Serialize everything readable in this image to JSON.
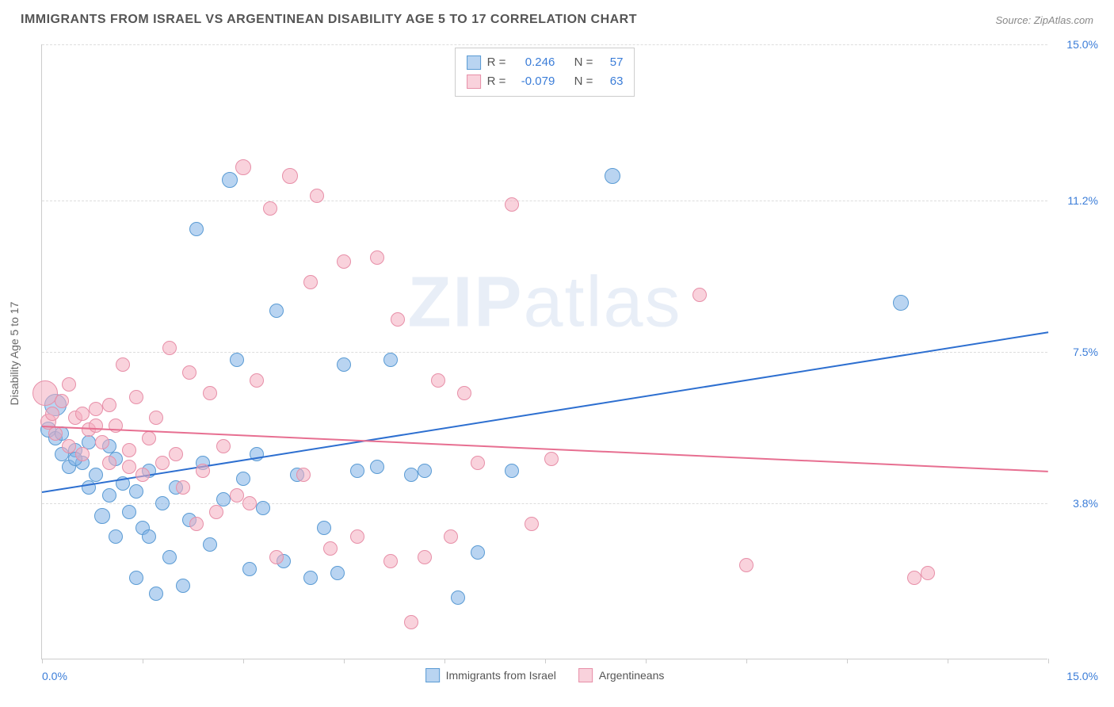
{
  "title": "IMMIGRANTS FROM ISRAEL VS ARGENTINEAN DISABILITY AGE 5 TO 17 CORRELATION CHART",
  "source": "Source: ZipAtlas.com",
  "ylabel": "Disability Age 5 to 17",
  "watermark_bold": "ZIP",
  "watermark_light": "atlas",
  "chart": {
    "type": "scatter",
    "xlim": [
      0,
      15
    ],
    "ylim": [
      0,
      15
    ],
    "background_color": "#ffffff",
    "grid_color": "#dddddd",
    "axis_color": "#cccccc",
    "tick_color": "#3b7dd8",
    "y_gridlines": [
      3.8,
      7.5,
      11.2,
      15.0
    ],
    "y_tick_labels": [
      "3.8%",
      "7.5%",
      "11.2%",
      "15.0%"
    ],
    "x_ticks_minor": [
      0,
      1.5,
      3.0,
      4.5,
      6.0,
      7.5,
      9.0,
      10.5,
      12.0,
      13.5,
      15.0
    ],
    "x_left_label": "0.0%",
    "x_right_label": "15.0%"
  },
  "series": [
    {
      "name": "Immigrants from Israel",
      "fill": "rgba(127,176,230,0.55)",
      "stroke": "#5a9bd4",
      "line_color": "#2d6fd0",
      "R": "0.246",
      "N": "57",
      "trend": {
        "x1": 0,
        "y1": 4.1,
        "x2": 15,
        "y2": 8.0
      },
      "points": [
        {
          "x": 0.1,
          "y": 5.6,
          "r": 10
        },
        {
          "x": 0.2,
          "y": 6.2,
          "r": 14
        },
        {
          "x": 0.2,
          "y": 5.4,
          "r": 9
        },
        {
          "x": 0.3,
          "y": 5.0,
          "r": 9
        },
        {
          "x": 0.4,
          "y": 4.7,
          "r": 9
        },
        {
          "x": 0.5,
          "y": 5.1,
          "r": 9
        },
        {
          "x": 0.6,
          "y": 4.8,
          "r": 9
        },
        {
          "x": 0.7,
          "y": 5.3,
          "r": 9
        },
        {
          "x": 0.8,
          "y": 4.5,
          "r": 9
        },
        {
          "x": 0.9,
          "y": 3.5,
          "r": 10
        },
        {
          "x": 1.0,
          "y": 4.0,
          "r": 9
        },
        {
          "x": 1.1,
          "y": 3.0,
          "r": 9
        },
        {
          "x": 1.2,
          "y": 4.3,
          "r": 9
        },
        {
          "x": 1.3,
          "y": 3.6,
          "r": 9
        },
        {
          "x": 1.4,
          "y": 2.0,
          "r": 9
        },
        {
          "x": 1.5,
          "y": 3.2,
          "r": 9
        },
        {
          "x": 1.6,
          "y": 4.6,
          "r": 9
        },
        {
          "x": 1.7,
          "y": 1.6,
          "r": 9
        },
        {
          "x": 1.8,
          "y": 3.8,
          "r": 9
        },
        {
          "x": 1.9,
          "y": 2.5,
          "r": 9
        },
        {
          "x": 2.0,
          "y": 4.2,
          "r": 9
        },
        {
          "x": 2.1,
          "y": 1.8,
          "r": 9
        },
        {
          "x": 2.2,
          "y": 3.4,
          "r": 9
        },
        {
          "x": 2.4,
          "y": 4.8,
          "r": 9
        },
        {
          "x": 2.5,
          "y": 2.8,
          "r": 9
        },
        {
          "x": 2.7,
          "y": 3.9,
          "r": 9
        },
        {
          "x": 2.8,
          "y": 11.7,
          "r": 10
        },
        {
          "x": 2.9,
          "y": 7.3,
          "r": 9
        },
        {
          "x": 3.0,
          "y": 4.4,
          "r": 9
        },
        {
          "x": 3.1,
          "y": 2.2,
          "r": 9
        },
        {
          "x": 3.3,
          "y": 3.7,
          "r": 9
        },
        {
          "x": 3.5,
          "y": 8.5,
          "r": 9
        },
        {
          "x": 3.6,
          "y": 2.4,
          "r": 9
        },
        {
          "x": 3.8,
          "y": 4.5,
          "r": 9
        },
        {
          "x": 4.0,
          "y": 2.0,
          "r": 9
        },
        {
          "x": 4.2,
          "y": 3.2,
          "r": 9
        },
        {
          "x": 4.4,
          "y": 2.1,
          "r": 9
        },
        {
          "x": 4.5,
          "y": 7.2,
          "r": 9
        },
        {
          "x": 4.7,
          "y": 4.6,
          "r": 9
        },
        {
          "x": 5.0,
          "y": 4.7,
          "r": 9
        },
        {
          "x": 5.2,
          "y": 7.3,
          "r": 9
        },
        {
          "x": 5.5,
          "y": 4.5,
          "r": 9
        },
        {
          "x": 5.7,
          "y": 4.6,
          "r": 9
        },
        {
          "x": 6.2,
          "y": 1.5,
          "r": 9
        },
        {
          "x": 6.5,
          "y": 2.6,
          "r": 9
        },
        {
          "x": 7.0,
          "y": 4.6,
          "r": 9
        },
        {
          "x": 8.5,
          "y": 11.8,
          "r": 10
        },
        {
          "x": 12.8,
          "y": 8.7,
          "r": 10
        },
        {
          "x": 2.3,
          "y": 10.5,
          "r": 9
        },
        {
          "x": 1.0,
          "y": 5.2,
          "r": 9
        },
        {
          "x": 0.5,
          "y": 4.9,
          "r": 9
        },
        {
          "x": 0.3,
          "y": 5.5,
          "r": 9
        },
        {
          "x": 0.7,
          "y": 4.2,
          "r": 9
        },
        {
          "x": 1.1,
          "y": 4.9,
          "r": 9
        },
        {
          "x": 1.4,
          "y": 4.1,
          "r": 9
        },
        {
          "x": 1.6,
          "y": 3.0,
          "r": 9
        },
        {
          "x": 3.2,
          "y": 5.0,
          "r": 9
        }
      ]
    },
    {
      "name": "Argentineans",
      "fill": "rgba(244,173,192,0.55)",
      "stroke": "#e78fa8",
      "line_color": "#e76f91",
      "R": "-0.079",
      "N": "63",
      "trend": {
        "x1": 0,
        "y1": 5.7,
        "x2": 15,
        "y2": 4.6
      },
      "points": [
        {
          "x": 0.05,
          "y": 6.5,
          "r": 16
        },
        {
          "x": 0.1,
          "y": 5.8,
          "r": 10
        },
        {
          "x": 0.15,
          "y": 6.0,
          "r": 9
        },
        {
          "x": 0.2,
          "y": 5.5,
          "r": 9
        },
        {
          "x": 0.3,
          "y": 6.3,
          "r": 9
        },
        {
          "x": 0.4,
          "y": 5.2,
          "r": 9
        },
        {
          "x": 0.5,
          "y": 5.9,
          "r": 9
        },
        {
          "x": 0.6,
          "y": 5.0,
          "r": 9
        },
        {
          "x": 0.7,
          "y": 5.6,
          "r": 9
        },
        {
          "x": 0.8,
          "y": 6.1,
          "r": 9
        },
        {
          "x": 0.9,
          "y": 5.3,
          "r": 9
        },
        {
          "x": 1.0,
          "y": 4.8,
          "r": 9
        },
        {
          "x": 1.1,
          "y": 5.7,
          "r": 9
        },
        {
          "x": 1.2,
          "y": 7.2,
          "r": 9
        },
        {
          "x": 1.3,
          "y": 5.1,
          "r": 9
        },
        {
          "x": 1.4,
          "y": 6.4,
          "r": 9
        },
        {
          "x": 1.5,
          "y": 4.5,
          "r": 9
        },
        {
          "x": 1.6,
          "y": 5.4,
          "r": 9
        },
        {
          "x": 1.8,
          "y": 4.8,
          "r": 9
        },
        {
          "x": 1.9,
          "y": 7.6,
          "r": 9
        },
        {
          "x": 2.0,
          "y": 5.0,
          "r": 9
        },
        {
          "x": 2.1,
          "y": 4.2,
          "r": 9
        },
        {
          "x": 2.2,
          "y": 7.0,
          "r": 9
        },
        {
          "x": 2.3,
          "y": 3.3,
          "r": 9
        },
        {
          "x": 2.5,
          "y": 6.5,
          "r": 9
        },
        {
          "x": 2.7,
          "y": 5.2,
          "r": 9
        },
        {
          "x": 2.9,
          "y": 4.0,
          "r": 9
        },
        {
          "x": 3.0,
          "y": 12.0,
          "r": 10
        },
        {
          "x": 3.2,
          "y": 6.8,
          "r": 9
        },
        {
          "x": 3.4,
          "y": 11.0,
          "r": 9
        },
        {
          "x": 3.5,
          "y": 2.5,
          "r": 9
        },
        {
          "x": 3.7,
          "y": 11.8,
          "r": 10
        },
        {
          "x": 3.9,
          "y": 4.5,
          "r": 9
        },
        {
          "x": 4.0,
          "y": 9.2,
          "r": 9
        },
        {
          "x": 4.1,
          "y": 11.3,
          "r": 9
        },
        {
          "x": 4.3,
          "y": 2.7,
          "r": 9
        },
        {
          "x": 4.5,
          "y": 9.7,
          "r": 9
        },
        {
          "x": 4.7,
          "y": 3.0,
          "r": 9
        },
        {
          "x": 5.0,
          "y": 9.8,
          "r": 9
        },
        {
          "x": 5.2,
          "y": 2.4,
          "r": 9
        },
        {
          "x": 5.3,
          "y": 8.3,
          "r": 9
        },
        {
          "x": 5.5,
          "y": 0.9,
          "r": 9
        },
        {
          "x": 5.7,
          "y": 2.5,
          "r": 9
        },
        {
          "x": 5.9,
          "y": 6.8,
          "r": 9
        },
        {
          "x": 6.1,
          "y": 3.0,
          "r": 9
        },
        {
          "x": 6.3,
          "y": 6.5,
          "r": 9
        },
        {
          "x": 6.5,
          "y": 4.8,
          "r": 9
        },
        {
          "x": 7.0,
          "y": 11.1,
          "r": 9
        },
        {
          "x": 7.3,
          "y": 3.3,
          "r": 9
        },
        {
          "x": 7.6,
          "y": 4.9,
          "r": 9
        },
        {
          "x": 9.8,
          "y": 8.9,
          "r": 9
        },
        {
          "x": 10.5,
          "y": 2.3,
          "r": 9
        },
        {
          "x": 13.0,
          "y": 2.0,
          "r": 9
        },
        {
          "x": 13.2,
          "y": 2.1,
          "r": 9
        },
        {
          "x": 0.4,
          "y": 6.7,
          "r": 9
        },
        {
          "x": 0.6,
          "y": 6.0,
          "r": 9
        },
        {
          "x": 0.8,
          "y": 5.7,
          "r": 9
        },
        {
          "x": 1.0,
          "y": 6.2,
          "r": 9
        },
        {
          "x": 1.3,
          "y": 4.7,
          "r": 9
        },
        {
          "x": 1.7,
          "y": 5.9,
          "r": 9
        },
        {
          "x": 2.4,
          "y": 4.6,
          "r": 9
        },
        {
          "x": 2.6,
          "y": 3.6,
          "r": 9
        },
        {
          "x": 3.1,
          "y": 3.8,
          "r": 9
        }
      ]
    }
  ],
  "stats_legend": {
    "r_label": "R =",
    "n_label": "N ="
  },
  "bottom_legend": {
    "items": [
      "Immigrants from Israel",
      "Argentineans"
    ]
  }
}
